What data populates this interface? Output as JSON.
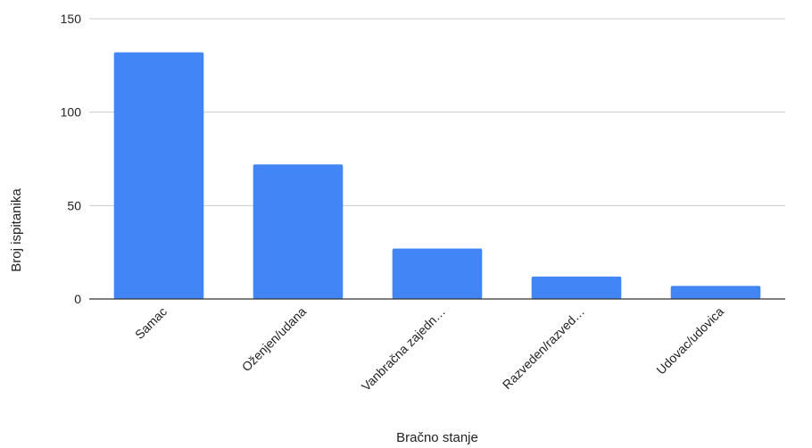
{
  "chart_data": {
    "type": "bar",
    "title": "",
    "xlabel": "Bračno stanje",
    "ylabel": "Broj ispitanika",
    "categories": [
      "Samac",
      "Oženjen/udana",
      "Vanbračna zajedn…",
      "Razveden/razved…",
      "Udovac/udovica"
    ],
    "values": [
      132,
      72,
      27,
      12,
      7
    ],
    "ylim": [
      0,
      150
    ],
    "yticks": [
      0,
      50,
      100,
      150
    ],
    "grid": true,
    "legend": "none",
    "bar_color": "#4285f4"
  }
}
